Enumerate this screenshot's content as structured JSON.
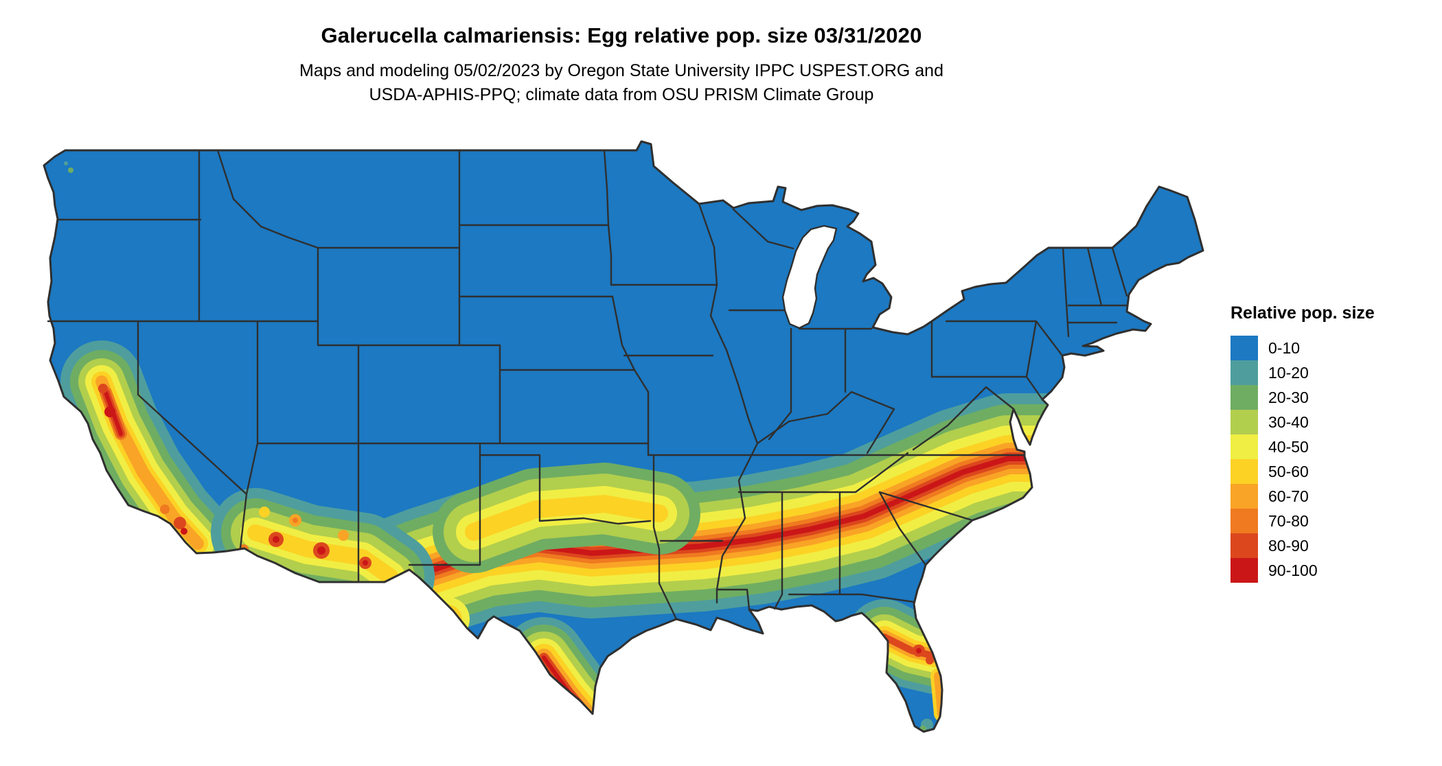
{
  "title": "Galerucella calmariensis: Egg relative pop. size 03/31/2020",
  "subtitle": {
    "line1": "Maps and modeling 05/02/2023 by Oregon State University IPPC USPEST.ORG and",
    "line2": "USDA-APHIS-PPQ; climate data from OSU PRISM Climate Group"
  },
  "legend": {
    "title": "Relative pop. size",
    "items": [
      {
        "label": "0-10",
        "color": "#1c79c2"
      },
      {
        "label": "10-20",
        "color": "#4f9e9d"
      },
      {
        "label": "20-30",
        "color": "#6fad62"
      },
      {
        "label": "30-40",
        "color": "#b2ce4d"
      },
      {
        "label": "40-50",
        "color": "#f0ee44"
      },
      {
        "label": "50-60",
        "color": "#fcd225"
      },
      {
        "label": "60-70",
        "color": "#f9a426"
      },
      {
        "label": "70-80",
        "color": "#ef7a20"
      },
      {
        "label": "80-90",
        "color": "#dc471e"
      },
      {
        "label": "90-100",
        "color": "#cb1618"
      }
    ]
  }
}
